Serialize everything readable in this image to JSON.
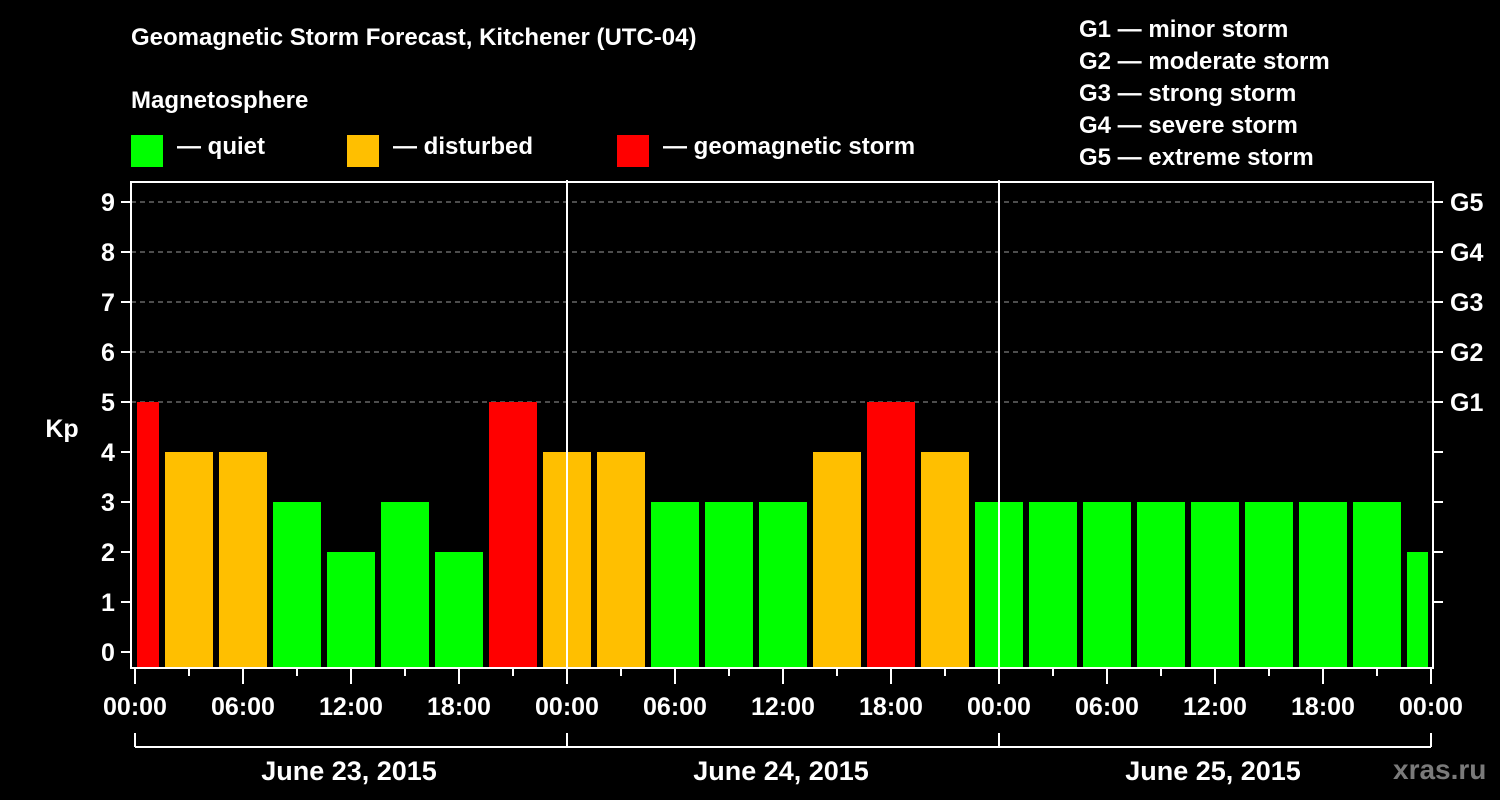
{
  "title": "Geomagnetic Storm Forecast, Kitchener (UTC-04)",
  "subtitle": "Magnetosphere",
  "legend": [
    {
      "label": "— quiet",
      "color": "#00ff00"
    },
    {
      "label": "— disturbed",
      "color": "#ffbf00"
    },
    {
      "label": "— geomagnetic storm",
      "color": "#ff0000"
    }
  ],
  "g_scale": [
    "G1 — minor storm",
    "G2 — moderate storm",
    "G3 — strong storm",
    "G4 — severe storm",
    "G5 — extreme storm"
  ],
  "watermark": "xras.ru",
  "chart_data": {
    "type": "bar",
    "title": "Geomagnetic Storm Forecast, Kitchener (UTC-04)",
    "ylabel": "Kp",
    "xlabel": "",
    "ylim": [
      0,
      9
    ],
    "yticks": [
      0,
      1,
      2,
      3,
      4,
      5,
      6,
      7,
      8,
      9
    ],
    "right_axis_labels": [
      {
        "kp": 5,
        "label": "G1"
      },
      {
        "kp": 6,
        "label": "G2"
      },
      {
        "kp": 7,
        "label": "G3"
      },
      {
        "kp": 8,
        "label": "G4"
      },
      {
        "kp": 9,
        "label": "G5"
      }
    ],
    "grid": "dashed horizontal lines at Kp 5-9",
    "xtick_labels": [
      "00:00",
      "06:00",
      "12:00",
      "18:00",
      "00:00",
      "06:00",
      "12:00",
      "18:00",
      "00:00",
      "06:00",
      "12:00",
      "18:00",
      "00:00"
    ],
    "days": [
      "June 23, 2015",
      "June 24, 2015",
      "June 25, 2015"
    ],
    "interval_hours": 3,
    "bar_start_offset_hours": -1,
    "colors": {
      "quiet": "#00ff00",
      "disturbed": "#ffbf00",
      "storm": "#ff0000"
    },
    "values": [
      5,
      4,
      4,
      3,
      2,
      3,
      2,
      5,
      4,
      4,
      3,
      3,
      3,
      4,
      5,
      4,
      3,
      3,
      3,
      3,
      3,
      3,
      3,
      3,
      2
    ]
  }
}
